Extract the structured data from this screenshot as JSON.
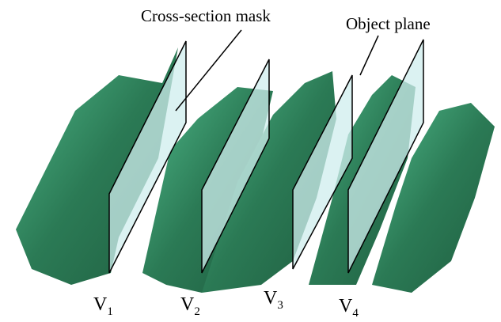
{
  "callouts": {
    "cross_section_mask": "Cross-section mask",
    "object_plane": "Object plane"
  },
  "volumes": [
    {
      "letter": "V",
      "index": "1"
    },
    {
      "letter": "V",
      "index": "2"
    },
    {
      "letter": "V",
      "index": "3"
    },
    {
      "letter": "V",
      "index": "4"
    }
  ]
}
